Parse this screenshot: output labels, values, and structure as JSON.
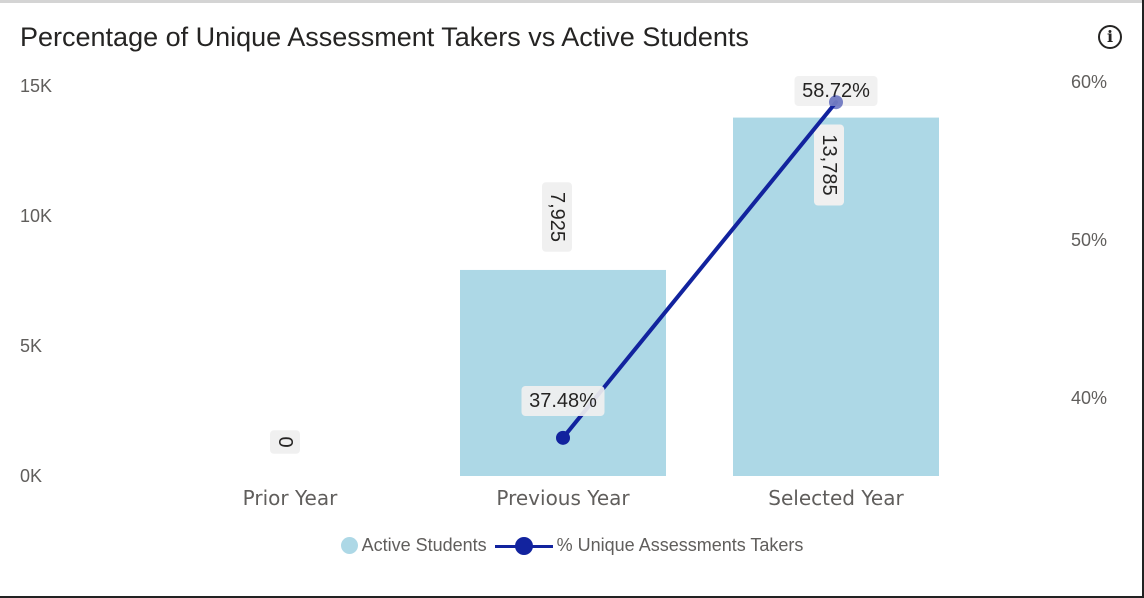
{
  "title": "Percentage of Unique Assessment Takers vs Active Students",
  "info_icon": "info-icon",
  "colors": {
    "bar": "#add8e6",
    "line": "#12239e",
    "label_bg": "#f0f0f0"
  },
  "chart_data": {
    "type": "bar",
    "categories": [
      "Prior Year",
      "Previous Year",
      "Selected Year"
    ],
    "y_left": {
      "ticks": [
        "15K",
        "10K",
        "5K",
        "0K"
      ],
      "tick_values": [
        15000,
        10000,
        5000,
        0
      ],
      "range": [
        0,
        15000
      ]
    },
    "y_right": {
      "ticks": [
        "60%",
        "50%",
        "40%"
      ],
      "tick_values": [
        60,
        50,
        40
      ],
      "range": [
        34,
        60
      ]
    },
    "series": [
      {
        "name": "Active Students",
        "type": "bar",
        "axis": "left",
        "values": [
          0,
          7925,
          13785
        ],
        "labels": [
          "0",
          "7,925",
          "13,785"
        ]
      },
      {
        "name": "% Unique Assessments Takers",
        "type": "line",
        "axis": "right",
        "values": [
          null,
          37.48,
          58.72
        ],
        "labels": [
          null,
          "37.48%",
          "58.72%"
        ]
      }
    ],
    "legend_position": "bottom-center"
  }
}
